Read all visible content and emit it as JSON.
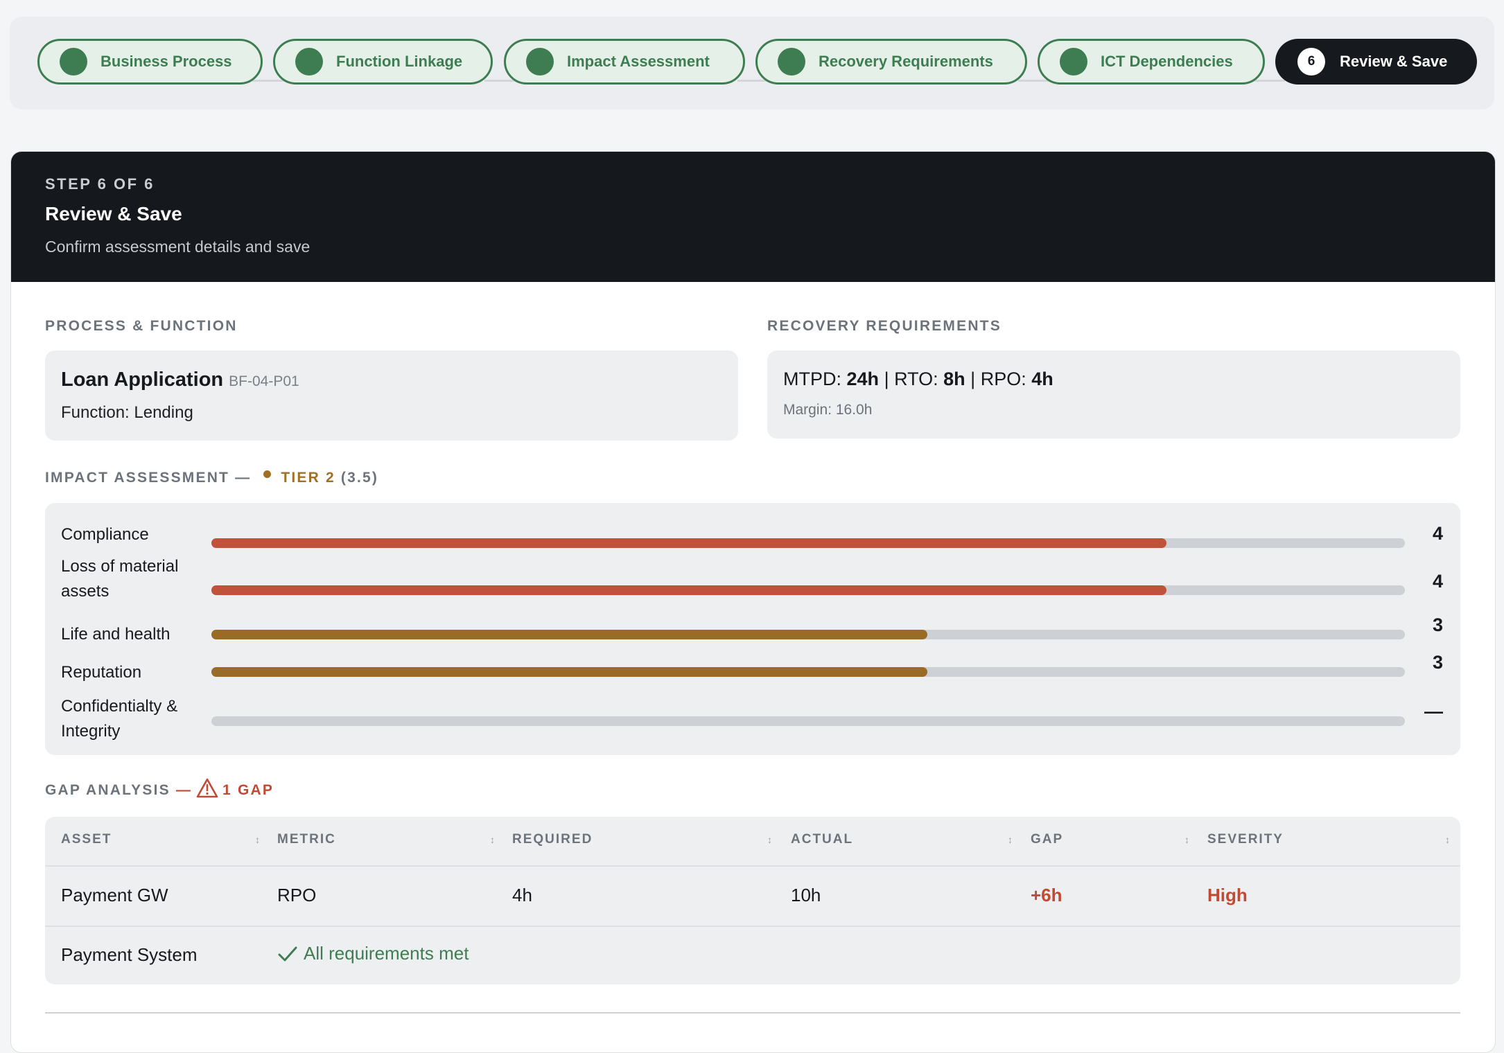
{
  "stepper": {
    "steps": [
      {
        "label": "Business Process",
        "state": "done"
      },
      {
        "label": "Function Linkage",
        "state": "done"
      },
      {
        "label": "Impact Assessment",
        "state": "done"
      },
      {
        "label": "Recovery Requirements",
        "state": "done"
      },
      {
        "label": "ICT Dependencies",
        "state": "done"
      },
      {
        "label": "Review & Save",
        "state": "active",
        "number": "6"
      }
    ]
  },
  "header": {
    "eyebrow": "STEP 6 OF 6",
    "title": "Review & Save",
    "subtitle": "Confirm assessment details and save"
  },
  "process_function": {
    "section_label": "PROCESS & FUNCTION",
    "name": "Loan Application",
    "code": "BF-04-P01",
    "function": "Function: Lending"
  },
  "recovery": {
    "section_label": "RECOVERY REQUIREMENTS",
    "mtpd_label": "MTPD:",
    "mtpd_value": "24h",
    "rto_label": "RTO:",
    "rto_value": "8h",
    "rpo_label": "RPO:",
    "rpo_value": "4h",
    "separator": "|",
    "margin": "Margin: 16.0h"
  },
  "impact": {
    "section_label": "IMPACT ASSESSMENT —",
    "tier_label": "TIER 2",
    "tier_score": "(3.5)",
    "max_score": 5,
    "colors": {
      "high": "#c0513a",
      "medium": "#9a6b27",
      "track": "#cdd1d6"
    },
    "rows": [
      {
        "label": "Compliance",
        "display": "4",
        "score": 4,
        "level": "high"
      },
      {
        "label": "Loss of material assets",
        "display": "4",
        "score": 4,
        "level": "high"
      },
      {
        "label": "Life and health",
        "display": "3",
        "score": 3,
        "level": "medium"
      },
      {
        "label": "Reputation",
        "display": "3",
        "score": 3,
        "level": "medium"
      },
      {
        "label": "Confidentialty & Integrity",
        "display": "—",
        "score": 0,
        "level": "none"
      }
    ]
  },
  "gap": {
    "section_label": "GAP ANALYSIS",
    "dash": "—",
    "count_label": "1 GAP",
    "icon": "warning-triangle-icon",
    "columns": [
      "ASSET",
      "METRIC",
      "REQUIRED",
      "ACTUAL",
      "GAP",
      "SEVERITY"
    ],
    "rows": [
      {
        "asset": "Payment GW",
        "metric": "RPO",
        "required": "4h",
        "actual": "10h",
        "gap": "+6h",
        "severity": "High"
      }
    ],
    "ok_row": {
      "asset": "Payment System",
      "message": "All requirements met",
      "icon": "check-icon"
    }
  }
}
